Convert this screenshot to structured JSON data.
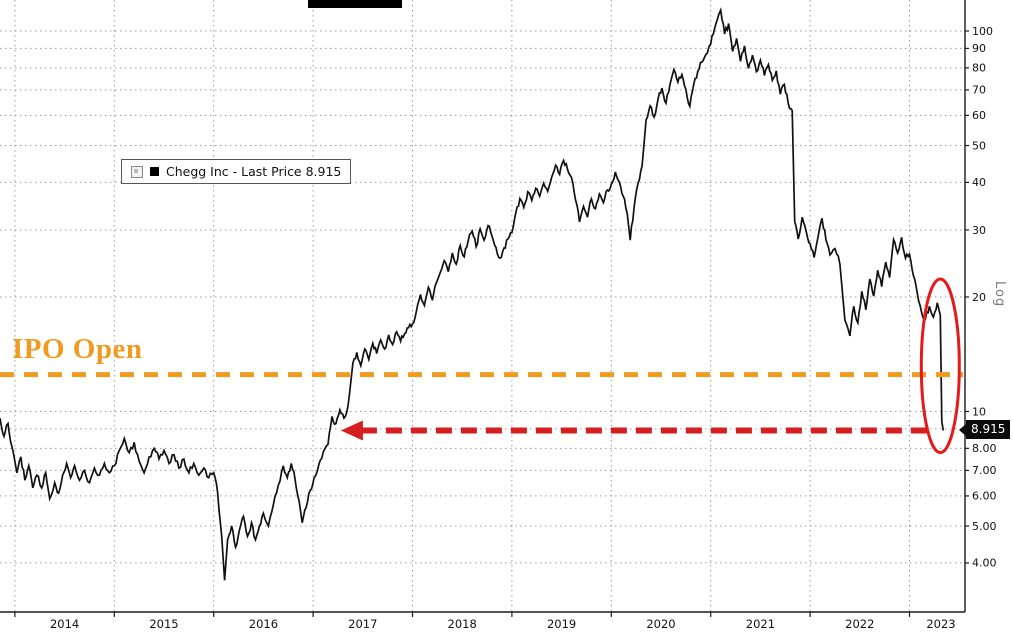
{
  "window": {
    "background": "#ffffff"
  },
  "chart_data": {
    "type": "line",
    "title": "",
    "y_scale": "log",
    "grid": true,
    "grid_color": "#9a9a9a",
    "legend": {
      "label": "Chegg Inc - Last Price 8.915",
      "swatch_color": "#000000",
      "position": "upper-left-inside"
    },
    "x_axis": {
      "years": [
        "2014",
        "2015",
        "2016",
        "2017",
        "2018",
        "2019",
        "2020",
        "2021",
        "2022",
        "2023"
      ]
    },
    "y_axis": {
      "side": "right",
      "scale_label": "Log",
      "ticks": [
        {
          "value": 100,
          "label": "100"
        },
        {
          "value": 90,
          "label": "90"
        },
        {
          "value": 80,
          "label": "80"
        },
        {
          "value": 70,
          "label": "70"
        },
        {
          "value": 60,
          "label": "60"
        },
        {
          "value": 50,
          "label": "50"
        },
        {
          "value": 40,
          "label": "40"
        },
        {
          "value": 30,
          "label": "30"
        },
        {
          "value": 20,
          "label": "20"
        },
        {
          "value": 10,
          "label": "10"
        },
        {
          "value": 9,
          "label": "9.00"
        },
        {
          "value": 8,
          "label": "8.00"
        },
        {
          "value": 7,
          "label": "7.00"
        },
        {
          "value": 6,
          "label": "6.00"
        },
        {
          "value": 5,
          "label": "5.00"
        },
        {
          "value": 4,
          "label": "4.00"
        }
      ]
    },
    "ylim": [
      3.0,
      120.6
    ],
    "xlim_years": [
      2013.85,
      2023.56
    ],
    "series": [
      {
        "name": "Chegg Inc",
        "metric": "Last Price",
        "last": 8.915,
        "color": "#111111",
        "points": [
          [
            2013.85,
            9.6
          ],
          [
            2013.89,
            8.6
          ],
          [
            2013.93,
            9.3
          ],
          [
            2013.97,
            8.1
          ],
          [
            2014.02,
            6.9
          ],
          [
            2014.06,
            7.6
          ],
          [
            2014.1,
            6.6
          ],
          [
            2014.14,
            7.2
          ],
          [
            2014.18,
            6.3
          ],
          [
            2014.22,
            6.8
          ],
          [
            2014.27,
            6.3
          ],
          [
            2014.31,
            6.9
          ],
          [
            2014.35,
            5.9
          ],
          [
            2014.4,
            6.5
          ],
          [
            2014.44,
            6.1
          ],
          [
            2014.48,
            6.8
          ],
          [
            2014.52,
            7.3
          ],
          [
            2014.56,
            6.7
          ],
          [
            2014.6,
            7.2
          ],
          [
            2014.65,
            6.6
          ],
          [
            2014.7,
            7.0
          ],
          [
            2014.75,
            6.5
          ],
          [
            2014.8,
            7.1
          ],
          [
            2014.85,
            6.8
          ],
          [
            2014.9,
            7.3
          ],
          [
            2014.95,
            6.9
          ],
          [
            2015.0,
            7.2
          ],
          [
            2015.05,
            7.9
          ],
          [
            2015.1,
            8.5
          ],
          [
            2015.15,
            7.8
          ],
          [
            2015.2,
            8.3
          ],
          [
            2015.25,
            7.4
          ],
          [
            2015.3,
            6.9
          ],
          [
            2015.35,
            7.6
          ],
          [
            2015.4,
            8.0
          ],
          [
            2015.45,
            7.5
          ],
          [
            2015.5,
            7.9
          ],
          [
            2015.55,
            7.3
          ],
          [
            2015.6,
            7.7
          ],
          [
            2015.65,
            7.1
          ],
          [
            2015.7,
            7.5
          ],
          [
            2015.75,
            6.9
          ],
          [
            2015.8,
            7.3
          ],
          [
            2015.85,
            6.8
          ],
          [
            2015.9,
            7.1
          ],
          [
            2015.95,
            6.7
          ],
          [
            2016.0,
            6.9
          ],
          [
            2016.04,
            6.1
          ],
          [
            2016.08,
            4.7
          ],
          [
            2016.11,
            3.6
          ],
          [
            2016.14,
            4.6
          ],
          [
            2016.18,
            5.0
          ],
          [
            2016.22,
            4.4
          ],
          [
            2016.26,
            4.9
          ],
          [
            2016.3,
            5.3
          ],
          [
            2016.34,
            4.7
          ],
          [
            2016.38,
            5.1
          ],
          [
            2016.42,
            4.6
          ],
          [
            2016.46,
            5.0
          ],
          [
            2016.5,
            5.4
          ],
          [
            2016.55,
            5.0
          ],
          [
            2016.6,
            5.7
          ],
          [
            2016.65,
            6.4
          ],
          [
            2016.7,
            7.2
          ],
          [
            2016.74,
            6.7
          ],
          [
            2016.78,
            7.3
          ],
          [
            2016.82,
            6.6
          ],
          [
            2016.86,
            5.8
          ],
          [
            2016.89,
            5.1
          ],
          [
            2016.93,
            5.6
          ],
          [
            2016.97,
            6.2
          ],
          [
            2017.01,
            6.7
          ],
          [
            2017.06,
            7.3
          ],
          [
            2017.1,
            7.8
          ],
          [
            2017.15,
            8.2
          ],
          [
            2017.19,
            9.7
          ],
          [
            2017.23,
            9.3
          ],
          [
            2017.27,
            10.1
          ],
          [
            2017.31,
            9.6
          ],
          [
            2017.35,
            10.3
          ],
          [
            2017.4,
            13.4
          ],
          [
            2017.44,
            14.3
          ],
          [
            2017.48,
            13.2
          ],
          [
            2017.52,
            14.6
          ],
          [
            2017.56,
            13.7
          ],
          [
            2017.6,
            15.1
          ],
          [
            2017.64,
            14.2
          ],
          [
            2017.68,
            15.4
          ],
          [
            2017.72,
            14.6
          ],
          [
            2017.76,
            15.9
          ],
          [
            2017.8,
            15.0
          ],
          [
            2017.84,
            16.2
          ],
          [
            2017.88,
            15.3
          ],
          [
            2017.92,
            16.0
          ],
          [
            2017.96,
            16.6
          ],
          [
            2018.0,
            17.0
          ],
          [
            2018.04,
            18.4
          ],
          [
            2018.08,
            20.3
          ],
          [
            2018.12,
            19.0
          ],
          [
            2018.16,
            21.2
          ],
          [
            2018.2,
            19.6
          ],
          [
            2018.24,
            21.8
          ],
          [
            2018.28,
            23.2
          ],
          [
            2018.32,
            24.9
          ],
          [
            2018.36,
            23.3
          ],
          [
            2018.4,
            26.1
          ],
          [
            2018.44,
            24.4
          ],
          [
            2018.48,
            27.3
          ],
          [
            2018.52,
            25.5
          ],
          [
            2018.56,
            28.1
          ],
          [
            2018.6,
            29.8
          ],
          [
            2018.64,
            27.1
          ],
          [
            2018.68,
            30.2
          ],
          [
            2018.72,
            28.2
          ],
          [
            2018.76,
            30.8
          ],
          [
            2018.8,
            28.9
          ],
          [
            2018.84,
            27.0
          ],
          [
            2018.88,
            25.3
          ],
          [
            2018.92,
            26.9
          ],
          [
            2018.96,
            28.4
          ],
          [
            2019.0,
            29.5
          ],
          [
            2019.04,
            33.4
          ],
          [
            2019.08,
            36.3
          ],
          [
            2019.12,
            34.4
          ],
          [
            2019.16,
            37.8
          ],
          [
            2019.2,
            35.9
          ],
          [
            2019.24,
            38.6
          ],
          [
            2019.28,
            36.8
          ],
          [
            2019.32,
            39.8
          ],
          [
            2019.36,
            37.9
          ],
          [
            2019.4,
            41.3
          ],
          [
            2019.44,
            44.4
          ],
          [
            2019.48,
            42.0
          ],
          [
            2019.52,
            45.7
          ],
          [
            2019.56,
            43.2
          ],
          [
            2019.6,
            41.1
          ],
          [
            2019.64,
            36.0
          ],
          [
            2019.68,
            31.5
          ],
          [
            2019.72,
            34.6
          ],
          [
            2019.76,
            32.4
          ],
          [
            2019.8,
            36.2
          ],
          [
            2019.84,
            34.1
          ],
          [
            2019.88,
            37.3
          ],
          [
            2019.92,
            35.4
          ],
          [
            2019.96,
            38.2
          ],
          [
            2020.0,
            39.6
          ],
          [
            2020.04,
            42.6
          ],
          [
            2020.08,
            40.1
          ],
          [
            2020.12,
            36.8
          ],
          [
            2020.16,
            33.2
          ],
          [
            2020.19,
            28.2
          ],
          [
            2020.23,
            34.6
          ],
          [
            2020.27,
            39.8
          ],
          [
            2020.31,
            44.2
          ],
          [
            2020.35,
            58.4
          ],
          [
            2020.39,
            63.6
          ],
          [
            2020.43,
            59.4
          ],
          [
            2020.47,
            66.2
          ],
          [
            2020.51,
            70.8
          ],
          [
            2020.55,
            64.6
          ],
          [
            2020.59,
            72.4
          ],
          [
            2020.63,
            79.2
          ],
          [
            2020.67,
            73.4
          ],
          [
            2020.71,
            76.8
          ],
          [
            2020.75,
            70.2
          ],
          [
            2020.79,
            63.4
          ],
          [
            2020.83,
            72.6
          ],
          [
            2020.87,
            78.4
          ],
          [
            2020.91,
            82.8
          ],
          [
            2020.95,
            86.6
          ],
          [
            2021.0,
            92.4
          ],
          [
            2021.04,
            101.8
          ],
          [
            2021.08,
            110.4
          ],
          [
            2021.1,
            113.5
          ],
          [
            2021.14,
            98.2
          ],
          [
            2021.18,
            104.6
          ],
          [
            2021.22,
            88.4
          ],
          [
            2021.26,
            95.6
          ],
          [
            2021.3,
            83.2
          ],
          [
            2021.34,
            91.4
          ],
          [
            2021.38,
            79.8
          ],
          [
            2021.42,
            86.4
          ],
          [
            2021.46,
            78.2
          ],
          [
            2021.5,
            83.8
          ],
          [
            2021.54,
            76.4
          ],
          [
            2021.58,
            81.6
          ],
          [
            2021.62,
            74.2
          ],
          [
            2021.66,
            78.6
          ],
          [
            2021.7,
            68.2
          ],
          [
            2021.74,
            72.4
          ],
          [
            2021.78,
            64.6
          ],
          [
            2021.82,
            61.8
          ],
          [
            2021.845,
            31.6
          ],
          [
            2021.88,
            28.4
          ],
          [
            2021.92,
            32.4
          ],
          [
            2021.96,
            29.8
          ],
          [
            2022.0,
            27.6
          ],
          [
            2022.04,
            25.4
          ],
          [
            2022.08,
            28.8
          ],
          [
            2022.12,
            32.2
          ],
          [
            2022.16,
            28.2
          ],
          [
            2022.2,
            25.8
          ],
          [
            2022.25,
            26.8
          ],
          [
            2022.3,
            24.4
          ],
          [
            2022.35,
            17.4
          ],
          [
            2022.4,
            15.8
          ],
          [
            2022.44,
            18.9
          ],
          [
            2022.48,
            17.1
          ],
          [
            2022.52,
            20.7
          ],
          [
            2022.56,
            18.5
          ],
          [
            2022.6,
            22.3
          ],
          [
            2022.64,
            20.1
          ],
          [
            2022.68,
            23.5
          ],
          [
            2022.72,
            21.3
          ],
          [
            2022.76,
            24.7
          ],
          [
            2022.8,
            22.5
          ],
          [
            2022.84,
            28.3
          ],
          [
            2022.88,
            26.1
          ],
          [
            2022.92,
            28.7
          ],
          [
            2022.96,
            25.3
          ],
          [
            2023.0,
            25.9
          ],
          [
            2023.04,
            22.7
          ],
          [
            2023.08,
            20.3
          ],
          [
            2023.12,
            18.3
          ],
          [
            2023.16,
            17.5
          ],
          [
            2023.2,
            18.9
          ],
          [
            2023.24,
            17.7
          ],
          [
            2023.28,
            19.3
          ],
          [
            2023.31,
            17.9
          ],
          [
            2023.325,
            9.4
          ],
          [
            2023.34,
            8.915
          ]
        ]
      }
    ],
    "annotations": {
      "ipo_line": {
        "label": "IPO Open",
        "value": 12.5,
        "style": "dashed",
        "color": "#ef9b21"
      },
      "crash_arrow": {
        "at_value": 8.915,
        "from_year": 2017.28,
        "to_year": 2023.22,
        "direction": "left",
        "style": "dashed",
        "color": "#d51f1f"
      },
      "crash_ellipse": {
        "center_year": 2023.31,
        "top_value": 22.3,
        "bottom_value": 7.8,
        "color": "#e51a1a"
      },
      "last_price_badge": {
        "label": "8.915",
        "value": 8.915,
        "bg": "#0b0b0b",
        "fg": "#ffffff"
      }
    }
  }
}
